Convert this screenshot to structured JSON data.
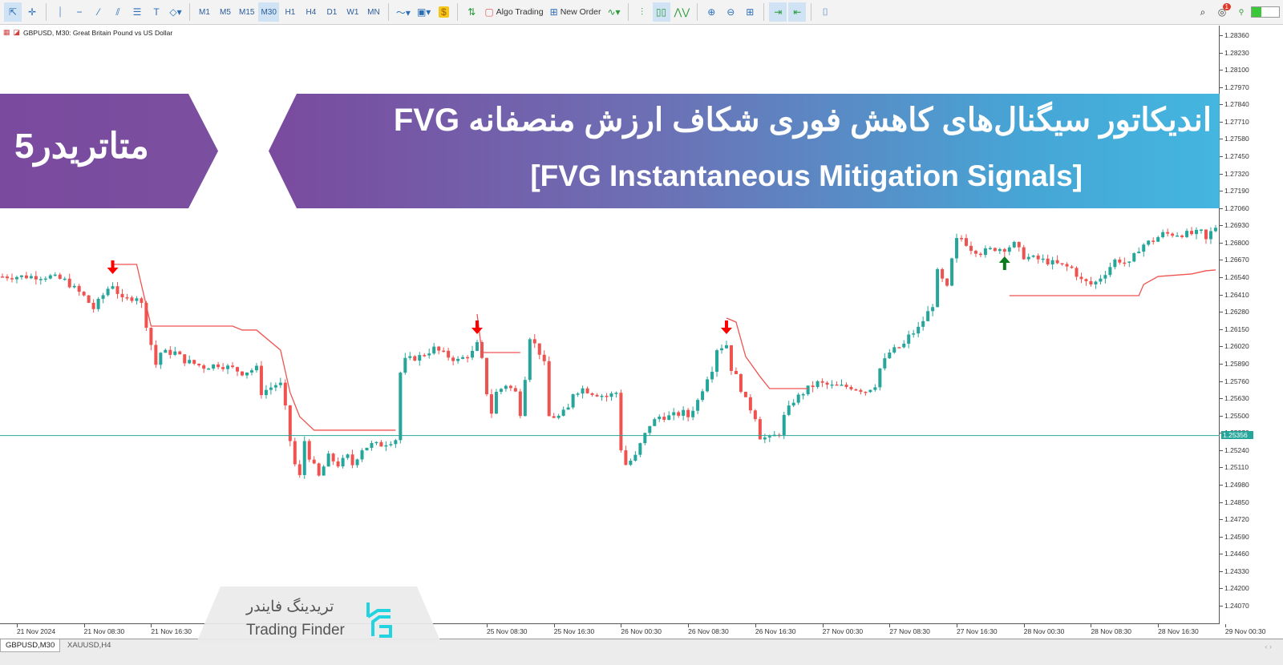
{
  "toolbar": {
    "tools": [
      "cursor-icon",
      "crosshair-icon",
      "vertical-line-icon",
      "horizontal-line-icon",
      "trendline-icon",
      "channel-icon",
      "fibonacci-icon",
      "text-icon",
      "shapes-icon"
    ],
    "timeframes": [
      "M1",
      "M5",
      "M15",
      "M30",
      "H1",
      "H4",
      "D1",
      "W1",
      "MN"
    ],
    "active_timeframe": "M30",
    "algo_trading_label": "Algo Trading",
    "new_order_label": "New Order",
    "notification_count": "1"
  },
  "chart": {
    "title": "GBPUSD, M30:  Great Britain Pound vs US Dollar",
    "current_price": "1.25356",
    "colors": {
      "bull": "#26a69a",
      "bear": "#ef5350",
      "fvg_line": "#ef5350",
      "signal_down": "#ff0000",
      "signal_up": "#0a7a1e",
      "price_line": "#26a69a"
    }
  },
  "chart_data": {
    "type": "candlestick",
    "symbol": "GBPUSD",
    "timeframe": "M30",
    "ylim": [
      1.2397,
      1.2845
    ],
    "y_ticks": [
      "1.28360",
      "1.28230",
      "1.28100",
      "1.27970",
      "1.27840",
      "1.27710",
      "1.27580",
      "1.27450",
      "1.27320",
      "1.27190",
      "1.27060",
      "1.26930",
      "1.26800",
      "1.26670",
      "1.26540",
      "1.26410",
      "1.26280",
      "1.26150",
      "1.26020",
      "1.25890",
      "1.25760",
      "1.25630",
      "1.25500",
      "1.25370",
      "1.25240",
      "1.25110",
      "1.24980",
      "1.24850",
      "1.24720",
      "1.24590",
      "1.24460",
      "1.24330",
      "1.24200",
      "1.24070"
    ],
    "x_ticks": [
      {
        "bar": 3,
        "label": "21 Nov 2024"
      },
      {
        "bar": 17,
        "label": "21 Nov 08:30"
      },
      {
        "bar": 31,
        "label": "21 Nov 16:30"
      },
      {
        "bar": 101,
        "label": "25 Nov 08:30"
      },
      {
        "bar": 115,
        "label": "25 Nov 16:30"
      },
      {
        "bar": 129,
        "label": "26 Nov 00:30"
      },
      {
        "bar": 143,
        "label": "26 Nov 08:30"
      },
      {
        "bar": 157,
        "label": "26 Nov 16:30"
      },
      {
        "bar": 171,
        "label": "27 Nov 00:30"
      },
      {
        "bar": 185,
        "label": "27 Nov 08:30"
      },
      {
        "bar": 199,
        "label": "27 Nov 16:30"
      },
      {
        "bar": 213,
        "label": "28 Nov 00:30"
      },
      {
        "bar": 227,
        "label": "28 Nov 08:30"
      },
      {
        "bar": 241,
        "label": "28 Nov 16:30"
      },
      {
        "bar": 255,
        "label": "29 Nov 00:30"
      }
    ],
    "close_path": [
      [
        0,
        1.26552
      ],
      [
        10,
        1.26552
      ],
      [
        13,
        1.26522
      ],
      [
        17,
        1.26402
      ],
      [
        19,
        1.26311
      ],
      [
        22,
        1.26462
      ],
      [
        23,
        1.26492
      ],
      [
        25,
        1.26372
      ],
      [
        28,
        1.26402
      ],
      [
        29,
        1.26342
      ],
      [
        30,
        1.26191
      ],
      [
        31,
        1.2604
      ],
      [
        32,
        1.2589
      ],
      [
        33,
        1.2598
      ],
      [
        36,
        1.2598
      ],
      [
        38,
        1.2592
      ],
      [
        42,
        1.25872
      ],
      [
        45,
        1.2589
      ],
      [
        48,
        1.2586
      ],
      [
        50,
        1.25829
      ],
      [
        53,
        1.2586
      ],
      [
        54,
        1.25679
      ],
      [
        57,
        1.25739
      ],
      [
        58,
        1.25739
      ],
      [
        59,
        1.25558
      ],
      [
        60,
        1.25317
      ],
      [
        61,
        1.25137
      ],
      [
        62,
        1.25046
      ],
      [
        63,
        1.25317
      ],
      [
        64,
        1.25197
      ],
      [
        66,
        1.25046
      ],
      [
        68,
        1.25197
      ],
      [
        70,
        1.25137
      ],
      [
        72,
        1.25197
      ],
      [
        73,
        1.25137
      ],
      [
        75,
        1.25257
      ],
      [
        77,
        1.25287
      ],
      [
        79,
        1.25287
      ],
      [
        82,
        1.25329
      ],
      [
        83,
        1.25829
      ],
      [
        84,
        1.2592
      ],
      [
        87,
        1.2595
      ],
      [
        90,
        1.2601
      ],
      [
        93,
        1.2595
      ],
      [
        95,
        1.2592
      ],
      [
        98,
        1.2598
      ],
      [
        99,
        1.2604
      ],
      [
        100,
        1.2592
      ],
      [
        101,
        1.25679
      ],
      [
        102,
        1.25528
      ],
      [
        103,
        1.25679
      ],
      [
        105,
        1.25739
      ],
      [
        107,
        1.25679
      ],
      [
        108,
        1.25528
      ],
      [
        109,
        1.25799
      ],
      [
        110,
        1.26101
      ],
      [
        112,
        1.2598
      ],
      [
        113,
        1.2589
      ],
      [
        114,
        1.25498
      ],
      [
        116,
        1.25498
      ],
      [
        118,
        1.25558
      ],
      [
        119,
        1.25679
      ],
      [
        121,
        1.25709
      ],
      [
        123,
        1.25679
      ],
      [
        126,
        1.25649
      ],
      [
        128,
        1.25679
      ],
      [
        129,
        1.25257
      ],
      [
        130,
        1.25137
      ],
      [
        132,
        1.25197
      ],
      [
        133,
        1.25287
      ],
      [
        135,
        1.25438
      ],
      [
        137,
        1.25498
      ],
      [
        139,
        1.25498
      ],
      [
        142,
        1.25528
      ],
      [
        143,
        1.25498
      ],
      [
        145,
        1.25619
      ],
      [
        147,
        1.25799
      ],
      [
        148,
        1.2586
      ],
      [
        149,
        1.2601
      ],
      [
        151,
        1.2604
      ],
      [
        152,
        1.2586
      ],
      [
        153,
        1.25799
      ],
      [
        155,
        1.25619
      ],
      [
        157,
        1.25498
      ],
      [
        158,
        1.25347
      ],
      [
        160,
        1.25329
      ],
      [
        162,
        1.25378
      ],
      [
        163,
        1.25498
      ],
      [
        165,
        1.25619
      ],
      [
        167,
        1.25679
      ],
      [
        168,
        1.25709
      ],
      [
        170,
        1.25751
      ],
      [
        173,
        1.25727
      ],
      [
        177,
        1.25721
      ],
      [
        180,
        1.25691
      ],
      [
        182,
        1.25739
      ],
      [
        183,
        1.2586
      ],
      [
        185,
        1.2598
      ],
      [
        188,
        1.2604
      ],
      [
        189,
        1.26101
      ],
      [
        191,
        1.26161
      ],
      [
        193,
        1.26281
      ],
      [
        194,
        1.26342
      ],
      [
        195,
        1.26583
      ],
      [
        196,
        1.26522
      ],
      [
        197,
        1.26462
      ],
      [
        198,
        1.26673
      ],
      [
        199,
        1.26824
      ],
      [
        200,
        1.26842
      ],
      [
        202,
        1.26763
      ],
      [
        204,
        1.26733
      ],
      [
        207,
        1.26763
      ],
      [
        209,
        1.26763
      ],
      [
        211,
        1.26793
      ],
      [
        213,
        1.26703
      ],
      [
        217,
        1.26673
      ],
      [
        220,
        1.26643
      ],
      [
        223,
        1.26613
      ],
      [
        225,
        1.26522
      ],
      [
        227,
        1.26492
      ],
      [
        228,
        1.2651
      ],
      [
        230,
        1.26583
      ],
      [
        232,
        1.26673
      ],
      [
        233,
        1.26673
      ],
      [
        235,
        1.26643
      ],
      [
        237,
        1.26763
      ],
      [
        238,
        1.26793
      ],
      [
        240,
        1.26824
      ],
      [
        242,
        1.26872
      ],
      [
        245,
        1.26872
      ],
      [
        248,
        1.26872
      ],
      [
        250,
        1.26884
      ],
      [
        251,
        1.26824
      ],
      [
        252,
        1.26884
      ],
      [
        253,
        1.26926
      ]
    ],
    "fvg_lines": [
      [
        [
          23,
          1.26643
        ],
        [
          28,
          1.26643
        ],
        [
          31,
          1.26179
        ],
        [
          48,
          1.26179
        ],
        [
          50,
          1.26149
        ],
        [
          53,
          1.26149
        ],
        [
          58,
          1.25998
        ],
        [
          60,
          1.25679
        ],
        [
          62,
          1.25498
        ],
        [
          65,
          1.25396
        ],
        [
          82,
          1.25396
        ]
      ],
      [
        [
          99,
          1.26269
        ],
        [
          100,
          1.2598
        ],
        [
          108,
          1.2598
        ]
      ],
      [
        [
          151,
          1.26239
        ],
        [
          153,
          1.26209
        ],
        [
          155,
          1.2595
        ],
        [
          158,
          1.25799
        ],
        [
          160,
          1.25709
        ],
        [
          168,
          1.25709
        ]
      ],
      [
        [
          210,
          1.26408
        ],
        [
          237,
          1.26408
        ],
        [
          238,
          1.26492
        ],
        [
          241,
          1.26552
        ],
        [
          248,
          1.26571
        ],
        [
          251,
          1.26595
        ],
        [
          253,
          1.26601
        ]
      ]
    ],
    "signals": [
      {
        "bar": 23,
        "direction": "down"
      },
      {
        "bar": 99,
        "direction": "down"
      },
      {
        "bar": 151,
        "direction": "down"
      },
      {
        "bar": 209,
        "direction": "up"
      }
    ],
    "price_line": 1.25356
  },
  "banner": {
    "title_fa": "اندیکاتور سیگنال‌های کاهش فوری شکاف ارزش منصفانه FVG",
    "title_en": "[FVG Instantaneous Mitigation Signals]",
    "platform_fa": "متاتریدر5"
  },
  "logo": {
    "name_fa": "تریدینگ فایندر",
    "name_en": "Trading Finder"
  },
  "tabs": [
    {
      "label": "GBPUSD,M30",
      "active": true
    },
    {
      "label": "XAUUSD,H4",
      "active": false
    }
  ]
}
